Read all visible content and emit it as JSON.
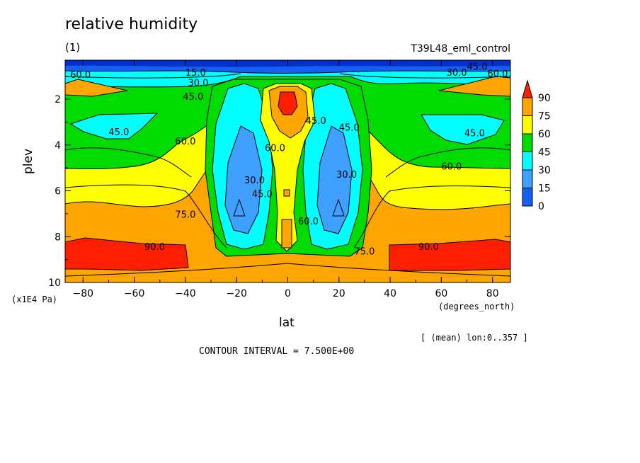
{
  "figure": {
    "title": "relative humidity",
    "subtitle": "(1)",
    "run_name": "T39L48_eml_control",
    "contour_interval_text": "CONTOUR INTERVAL = 7.500E+00",
    "mean_info": "[ (mean) lon:0..357 ]"
  },
  "chart_data": {
    "type": "heatmap",
    "title": "relative humidity",
    "xlabel": "lat",
    "ylabel": "plev",
    "x_unit": "(degrees_north)",
    "y_unit": "(x1E4 Pa)",
    "xlim": [
      -87,
      87
    ],
    "ylim": [
      10,
      0.3
    ],
    "y_inverted": true,
    "x_ticks": [
      -80,
      -60,
      -40,
      -20,
      0,
      20,
      40,
      60,
      80
    ],
    "y_ticks": [
      2,
      4,
      6,
      8,
      10
    ],
    "x_tick_labels": [
      "−80",
      "−60",
      "−40",
      "−20",
      "0",
      "20",
      "40",
      "60",
      "80"
    ],
    "y_tick_labels": [
      "2",
      "4",
      "6",
      "8",
      "10"
    ],
    "color_levels": [
      0,
      15,
      30,
      45,
      60,
      75,
      90
    ],
    "colorbar_labels": [
      "90",
      "75",
      "60",
      "45",
      "30",
      "15",
      "0"
    ],
    "colors": [
      "#1560f0",
      "#3fa0ff",
      "#00ffff",
      "#00dc00",
      "#ffff00",
      "#ffa500",
      "#ff1e00"
    ],
    "contour_interval": 7.5,
    "contour_labels": [
      {
        "text": "60.0",
        "lat": -81,
        "plev": 0.95
      },
      {
        "text": "15.0",
        "lat": -36,
        "plev": 0.85
      },
      {
        "text": "30.0",
        "lat": -35,
        "plev": 1.3
      },
      {
        "text": "45.0",
        "lat": -37,
        "plev": 1.9
      },
      {
        "text": "45.0",
        "lat": -66,
        "plev": 3.45
      },
      {
        "text": "60.0",
        "lat": -40,
        "plev": 3.85
      },
      {
        "text": "75.0",
        "lat": -40,
        "plev": 7.05
      },
      {
        "text": "90.0",
        "lat": -52,
        "plev": 8.45
      },
      {
        "text": "30.0",
        "lat": -13,
        "plev": 5.55
      },
      {
        "text": "45.0",
        "lat": -10,
        "plev": 6.15
      },
      {
        "text": "60.0",
        "lat": -5,
        "plev": 4.15
      },
      {
        "text": "60.0",
        "lat": 8,
        "plev": 7.35
      },
      {
        "text": "45.0",
        "lat": 11,
        "plev": 2.95
      },
      {
        "text": "45.0",
        "lat": 24,
        "plev": 3.25
      },
      {
        "text": "30.0",
        "lat": 23,
        "plev": 5.3
      },
      {
        "text": "75.0",
        "lat": 30,
        "plev": 8.65
      },
      {
        "text": "60.0",
        "lat": 64,
        "plev": 4.95
      },
      {
        "text": "45.0",
        "lat": 73,
        "plev": 3.5
      },
      {
        "text": "90.0",
        "lat": 55,
        "plev": 8.45
      },
      {
        "text": "30.0",
        "lat": 66,
        "plev": 0.85
      },
      {
        "text": "45.0",
        "lat": 74,
        "plev": 0.6
      },
      {
        "text": "60.0",
        "lat": 82,
        "plev": 0.9
      }
    ]
  }
}
